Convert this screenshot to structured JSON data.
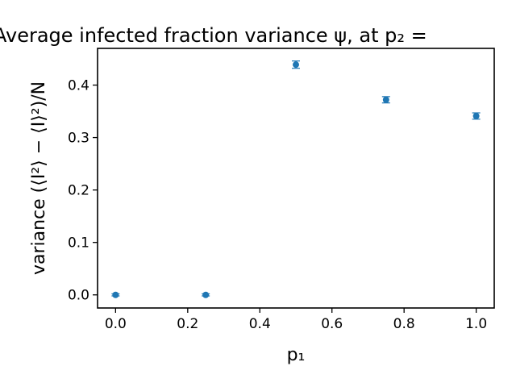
{
  "chart_data": {
    "type": "scatter",
    "title": "Average infected fraction variance ψ, at p₂ = ",
    "xlabel": "p₁",
    "ylabel": "variance (⟨I²⟩ − ⟨I⟩²)/N",
    "xlim": [
      -0.05,
      1.05
    ],
    "ylim": [
      -0.025,
      0.47
    ],
    "xticks": [
      "0.0",
      "0.2",
      "0.4",
      "0.6",
      "0.8",
      "1.0"
    ],
    "yticks": [
      "0.0",
      "0.1",
      "0.2",
      "0.3",
      "0.4"
    ],
    "color": "#1f77b4",
    "grid": false,
    "points": [
      {
        "x": 0.0,
        "y": 0.0,
        "err": 0.002
      },
      {
        "x": 0.25,
        "y": 0.0,
        "err": 0.002
      },
      {
        "x": 0.5,
        "y": 0.439,
        "err": 0.007
      },
      {
        "x": 0.75,
        "y": 0.372,
        "err": 0.006
      },
      {
        "x": 1.0,
        "y": 0.341,
        "err": 0.006
      }
    ]
  }
}
